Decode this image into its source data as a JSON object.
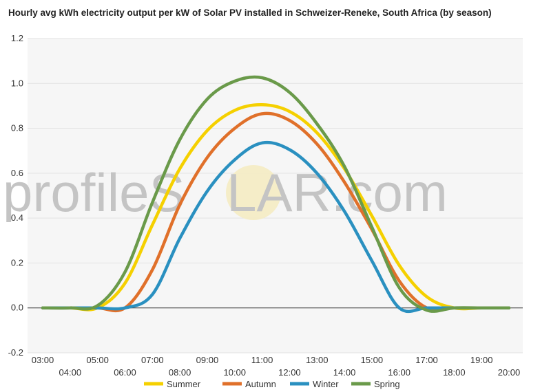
{
  "watermark": {
    "left": "profileS",
    "mid": "O",
    "right": "LAR.com"
  },
  "chart_data": {
    "type": "line",
    "title": "Hourly avg kWh electricity output per kW of Solar PV installed in Schweizer-Reneke, South Africa (by season)",
    "xlabel": "",
    "ylabel": "",
    "categories": [
      "03:00",
      "04:00",
      "05:00",
      "06:00",
      "07:00",
      "08:00",
      "09:00",
      "10:00",
      "11:00",
      "12:00",
      "13:00",
      "14:00",
      "15:00",
      "16:00",
      "17:00",
      "18:00",
      "19:00",
      "20:00"
    ],
    "x": [
      3,
      4,
      5,
      6,
      7,
      8,
      9,
      10,
      11,
      12,
      13,
      14,
      15,
      16,
      17,
      18,
      19,
      20
    ],
    "ylim": [
      -0.2,
      1.2
    ],
    "yticks": [
      "-0.2",
      "0.0",
      "0.2",
      "0.4",
      "0.6",
      "0.8",
      "1.0",
      "1.2"
    ],
    "grid": true,
    "legend_position": "bottom",
    "series": [
      {
        "name": "Summer",
        "color": "#f5d000",
        "values": [
          0,
          0,
          0.0,
          0.11,
          0.37,
          0.62,
          0.79,
          0.88,
          0.905,
          0.875,
          0.78,
          0.62,
          0.41,
          0.19,
          0.05,
          0.0,
          0,
          0
        ]
      },
      {
        "name": "Autumn",
        "color": "#e0702a",
        "values": [
          0,
          0,
          0,
          0.0,
          0.17,
          0.46,
          0.67,
          0.8,
          0.865,
          0.835,
          0.73,
          0.56,
          0.35,
          0.12,
          0.0,
          0,
          0,
          0
        ]
      },
      {
        "name": "Winter",
        "color": "#2a90c0",
        "values": [
          0,
          0,
          0,
          0.0,
          0.06,
          0.31,
          0.52,
          0.66,
          0.735,
          0.705,
          0.6,
          0.43,
          0.21,
          0.0,
          0,
          0,
          0,
          0
        ]
      },
      {
        "name": "Spring",
        "color": "#6a9a4a",
        "values": [
          0,
          0,
          0.01,
          0.16,
          0.47,
          0.75,
          0.93,
          1.01,
          1.025,
          0.96,
          0.82,
          0.63,
          0.36,
          0.09,
          -0.01,
          0,
          0,
          0
        ]
      }
    ]
  }
}
